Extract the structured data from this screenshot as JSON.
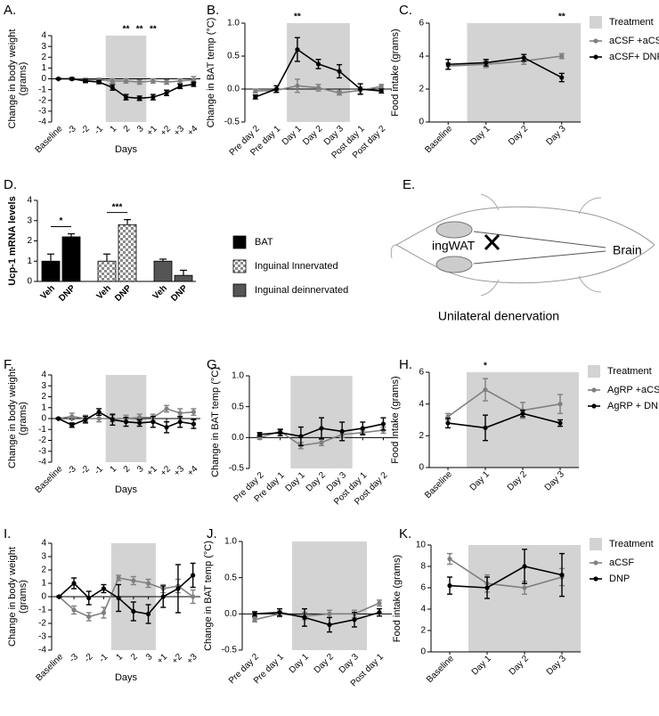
{
  "chart_data": [
    {
      "type": "line",
      "panel_label": "A.",
      "ylabel": [
        "Change in body weight",
        "(grams)"
      ],
      "xlabel": "Days",
      "categories": [
        "Baseline",
        "-3",
        "-2",
        "-1",
        "1",
        "2",
        "3",
        "+1",
        "+2",
        "+3",
        "+4"
      ],
      "treatment_span": [
        "1",
        "3"
      ],
      "ylim": [
        -4,
        4
      ],
      "yticks": [
        -4,
        -3,
        -2,
        -1,
        0,
        1,
        2,
        3,
        4
      ],
      "series": [
        {
          "color": "#808080",
          "values": [
            0,
            0,
            -0.1,
            -0.1,
            -0.2,
            -0.2,
            -0.3,
            -0.2,
            -0.3,
            -0.2,
            -0.1
          ],
          "errors": [
            0.05,
            0.1,
            0.15,
            0.15,
            0.2,
            0.2,
            0.2,
            0.2,
            0.2,
            0.2,
            0.3
          ]
        },
        {
          "color": "#000000",
          "values": [
            0,
            0,
            -0.2,
            -0.3,
            -0.8,
            -1.7,
            -1.8,
            -1.7,
            -1.3,
            -0.7,
            -0.5
          ],
          "errors": [
            0.05,
            0.1,
            0.15,
            0.15,
            0.25,
            0.25,
            0.2,
            0.25,
            0.25,
            0.2,
            0.2
          ]
        }
      ],
      "significance": [
        null,
        null,
        null,
        null,
        null,
        "**",
        "**",
        "**",
        null,
        null,
        null
      ]
    },
    {
      "type": "line",
      "panel_label": "B.",
      "ylabel": [
        "Change in BAT temp (°C)"
      ],
      "categories": [
        "Pre day 2",
        "Pre day 1",
        "Day 1",
        "Day 2",
        "Day 3",
        "Post day 1",
        "Post day 2"
      ],
      "treatment_span": [
        "Day 1",
        "Day 3"
      ],
      "ylim": [
        -0.5,
        1
      ],
      "yticks": [
        -0.5,
        {
          "value": 0,
          "label": "0.0"
        },
        0.5,
        {
          "value": 1,
          "label": "1.0"
        }
      ],
      "series": [
        {
          "color": "#808080",
          "values": [
            -0.03,
            -0.02,
            0.05,
            0.02,
            -0.06,
            -0.02,
            0.04
          ],
          "errors": [
            0.03,
            0.03,
            0.1,
            0.05,
            0.03,
            0.05,
            0.03
          ]
        },
        {
          "color": "#000000",
          "values": [
            -0.12,
            0,
            0.6,
            0.38,
            0.27,
            0,
            -0.03
          ],
          "errors": [
            0.03,
            0.05,
            0.18,
            0.07,
            0.1,
            0.08,
            0.03
          ]
        }
      ],
      "significance": [
        null,
        null,
        "**",
        null,
        null,
        null,
        null
      ]
    },
    {
      "type": "line",
      "panel_label": "C.",
      "ylabel": [
        "Food intake (grams)"
      ],
      "legend_treatment": "Treatment",
      "categories": [
        "Baseline",
        "Day 1",
        "Day 2",
        "Day 3"
      ],
      "treatment_span": [
        "Day 1",
        "Day 3"
      ],
      "ylim": [
        0,
        6
      ],
      "yticks": [
        0,
        2,
        4,
        6
      ],
      "series": [
        {
          "name": "aCSF +aCSF",
          "color": "#808080",
          "values": [
            3.4,
            3.5,
            3.7,
            4.0
          ],
          "errors": [
            0.2,
            0.2,
            0.2,
            0.15
          ]
        },
        {
          "name": "aCSF+ DNP",
          "color": "#000000",
          "values": [
            3.5,
            3.6,
            3.9,
            2.7
          ],
          "errors": [
            0.3,
            0.2,
            0.2,
            0.25
          ]
        }
      ],
      "significance": [
        null,
        null,
        null,
        "**"
      ]
    },
    {
      "type": "bar",
      "panel_label": "D.",
      "ylabel": [
        "Ucp-1 mRNA levels"
      ],
      "categories": [
        "Veh",
        "DNP",
        "Veh",
        "DNP",
        "Veh",
        "DNP"
      ],
      "ylim": [
        0,
        4
      ],
      "yticks": [
        0,
        1,
        2,
        3,
        4
      ],
      "series": [
        {
          "name": "BAT",
          "color": "#000000",
          "values": [
            1.0,
            2.2,
            null,
            null,
            null,
            null
          ],
          "errors": [
            0.35,
            0.15,
            null,
            null,
            null,
            null
          ],
          "annotation": "*"
        },
        {
          "name": "Inguinal Innervated",
          "color": "#9a9a9a",
          "pattern": "checker",
          "values": [
            null,
            null,
            1.0,
            2.8,
            null,
            null
          ],
          "errors": [
            null,
            null,
            0.35,
            0.25,
            null,
            null
          ],
          "annotation": "***"
        },
        {
          "name": "Inguinal deinnervated",
          "color": "#555555",
          "values": [
            null,
            null,
            null,
            null,
            1.0,
            0.3
          ],
          "errors": [
            null,
            null,
            null,
            null,
            0.1,
            0.25
          ]
        }
      ]
    },
    {
      "type": "line",
      "panel_label": "F.",
      "ylabel": [
        "Change in body weight",
        "(grams)"
      ],
      "xlabel": "Days",
      "categories": [
        "Baseline",
        "-3",
        "-2",
        "-1",
        "1",
        "2",
        "3",
        "+1",
        "+2",
        "+3",
        "+4"
      ],
      "treatment_span": [
        "1",
        "3"
      ],
      "ylim": [
        -4,
        4
      ],
      "yticks": [
        -4,
        -3,
        -2,
        -1,
        0,
        1,
        2,
        3,
        4
      ],
      "series": [
        {
          "color": "#808080",
          "values": [
            0,
            0.2,
            0,
            0,
            0,
            0,
            0.1,
            0.1,
            0.9,
            0.5,
            0.6
          ],
          "errors": [
            0.05,
            0.3,
            0.3,
            0.3,
            0.3,
            0.3,
            0.3,
            0.3,
            0.3,
            0.4,
            0.3
          ]
        },
        {
          "color": "#000000",
          "values": [
            0,
            -0.6,
            -0.1,
            0.6,
            -0.1,
            -0.3,
            -0.4,
            -0.3,
            -0.8,
            -0.3,
            -0.5
          ],
          "errors": [
            0.05,
            0.2,
            0.3,
            0.3,
            0.5,
            0.4,
            0.3,
            0.5,
            0.5,
            0.5,
            0.4
          ]
        }
      ]
    },
    {
      "type": "line",
      "panel_label": "G.",
      "ylabel": [
        "Change in BAT temp (°C)"
      ],
      "categories": [
        "Pre day 2",
        "Pre day 1",
        "Day 1",
        "Day 2",
        "Day 3",
        "Post day 1",
        "Post day 2"
      ],
      "treatment_span": [
        "Day 1",
        "Day 3"
      ],
      "ylim": [
        -0.5,
        1
      ],
      "yticks": [
        -0.5,
        {
          "value": 0,
          "label": "0.0"
        },
        0.5,
        {
          "value": 1,
          "label": "1.0"
        }
      ],
      "series": [
        {
          "color": "#808080",
          "values": [
            0.0,
            0.1,
            -0.13,
            -0.08,
            0.05,
            0.08,
            0.12
          ],
          "errors": [
            0.03,
            0.04,
            0.05,
            0.05,
            0.05,
            0.04,
            0.05
          ]
        },
        {
          "color": "#000000",
          "values": [
            0.05,
            0.08,
            0.02,
            0.15,
            0.1,
            0.15,
            0.22
          ],
          "errors": [
            0.03,
            0.05,
            0.15,
            0.17,
            0.15,
            0.1,
            0.1
          ]
        }
      ]
    },
    {
      "type": "line",
      "panel_label": "H.",
      "ylabel": [
        "Food intake (grams)"
      ],
      "legend_treatment": "Treatment",
      "categories": [
        "Baseline",
        "Day 1",
        "Day 2",
        "Day 3"
      ],
      "treatment_span": [
        "Day 1",
        "Day 3"
      ],
      "ylim": [
        0,
        6
      ],
      "yticks": [
        0,
        2,
        4,
        6
      ],
      "series": [
        {
          "name": "AgRP +aCSF",
          "color": "#808080",
          "values": [
            3.2,
            4.9,
            3.6,
            4.0
          ],
          "errors": [
            0.2,
            0.7,
            0.5,
            0.6
          ]
        },
        {
          "name": "AgRP + DNP",
          "color": "#000000",
          "values": [
            2.8,
            2.5,
            3.4,
            2.8
          ],
          "errors": [
            0.3,
            0.8,
            0.2,
            0.2
          ]
        }
      ],
      "significance": [
        null,
        "*",
        null,
        null
      ]
    },
    {
      "type": "line",
      "panel_label": "I.",
      "ylabel": [
        "Change in body weight",
        "(grams)"
      ],
      "xlabel": "Days",
      "categories": [
        "Baseline",
        "-3",
        "-2",
        "-1",
        "1",
        "2",
        "3",
        "+1",
        "+2",
        "+3"
      ],
      "treatment_span": [
        "1",
        "3"
      ],
      "ylim": [
        -4,
        4
      ],
      "yticks": [
        -4,
        -3,
        -2,
        -1,
        0,
        1,
        2,
        3,
        4
      ],
      "series": [
        {
          "color": "#808080",
          "values": [
            0,
            -1.0,
            -1.5,
            -1.2,
            1.4,
            1.2,
            1.0,
            0.6,
            0.8,
            0.0
          ],
          "errors": [
            0.05,
            0.3,
            0.3,
            0.4,
            0.2,
            0.3,
            0.3,
            0.3,
            0.5,
            0.5
          ]
        },
        {
          "color": "#000000",
          "values": [
            0,
            1.0,
            -0.1,
            0.6,
            -0.1,
            -1.1,
            -1.3,
            0.0,
            0.6,
            1.6
          ],
          "errors": [
            0.05,
            0.4,
            0.5,
            0.3,
            1.0,
            0.7,
            0.7,
            0.8,
            1.8,
            0.9
          ]
        }
      ]
    },
    {
      "type": "line",
      "panel_label": "J.",
      "ylabel": [
        "Change in BAT temp (°C)"
      ],
      "categories": [
        "Pre day 2",
        "Pre day 1",
        "Day 1",
        "Day 2",
        "Day 3",
        "Post day 1"
      ],
      "treatment_span": [
        "Day 1",
        "Day 3"
      ],
      "ylim": [
        -0.5,
        1
      ],
      "yticks": [
        -0.5,
        {
          "value": 0,
          "label": "0.0"
        },
        0.5,
        {
          "value": 1,
          "label": "1.0"
        }
      ],
      "series": [
        {
          "color": "#808080",
          "values": [
            -0.08,
            0.0,
            -0.03,
            0.0,
            0.0,
            0.15
          ],
          "errors": [
            0.03,
            0.04,
            0.05,
            0.05,
            0.05,
            0.04
          ]
        },
        {
          "color": "#000000",
          "values": [
            0.0,
            0.02,
            -0.05,
            -0.15,
            -0.08,
            0.02
          ],
          "errors": [
            0.03,
            0.05,
            0.12,
            0.1,
            0.1,
            0.05
          ]
        }
      ]
    },
    {
      "type": "line",
      "panel_label": "K.",
      "ylabel": [
        "Food intake (grams)"
      ],
      "legend_treatment": "Treatment",
      "categories": [
        "Baseline",
        "Day 1",
        "Day 2",
        "Day 3"
      ],
      "treatment_span": [
        "Day 1",
        "Day 3"
      ],
      "ylim": [
        0,
        10
      ],
      "yticks": [
        0,
        2,
        4,
        6,
        8,
        10
      ],
      "series": [
        {
          "name": "aCSF",
          "color": "#808080",
          "values": [
            8.7,
            6.4,
            6.0,
            7.0
          ],
          "errors": [
            0.5,
            0.8,
            0.6,
            0.8
          ]
        },
        {
          "name": "DNP",
          "color": "#000000",
          "values": [
            6.2,
            6.0,
            8.0,
            7.2
          ],
          "errors": [
            0.8,
            1.0,
            1.6,
            2.0
          ]
        }
      ]
    }
  ],
  "panel_e": {
    "panel_label": "E.",
    "fat_label": "ingWAT",
    "brain_label": "Brain",
    "caption": "Unilateral denervation"
  }
}
